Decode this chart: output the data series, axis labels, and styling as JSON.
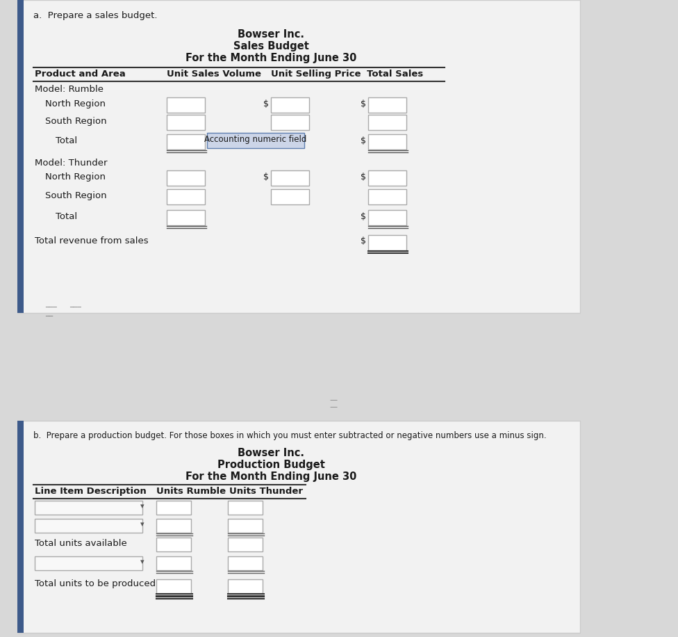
{
  "bg_color": "#d8d8d8",
  "panel_color": "#f0f0f0",
  "box_color": "#ffffff",
  "box_edge": "#aaaaaa",
  "text_color": "#1a1a1a",
  "section_a_label": "a.  Prepare a sales budget.",
  "sales_title1": "Bowser Inc.",
  "sales_title2": "Sales Budget",
  "sales_title3": "For the Month Ending June 30",
  "sales_col1": "Product and Area",
  "sales_col2": "Unit Sales Volume",
  "sales_col3": "Unit Selling Price",
  "sales_col4": "Total Sales",
  "rumble_label": "Model: Rumble",
  "north_label": "North Region",
  "south_label": "South Region",
  "total_label": "Total",
  "thunder_label": "Model: Thunder",
  "total_rev_label": "Total revenue from sales",
  "acct_tooltip": "Accounting numeric field",
  "section_b_label": "b.  Prepare a production budget. For those boxes in which you must enter subtracted or negative numbers use a minus sign.",
  "prod_title1": "Bowser Inc.",
  "prod_title2": "Production Budget",
  "prod_title3": "For the Month Ending June 30",
  "prod_col1": "Line Item Description",
  "prod_col2": "Units Rumble",
  "prod_col3": "Units Thunder",
  "total_avail_label": "Total units available",
  "total_prod_label": "Total units to be produced",
  "figure_width": 9.76,
  "figure_height": 9.16,
  "dpi": 100
}
